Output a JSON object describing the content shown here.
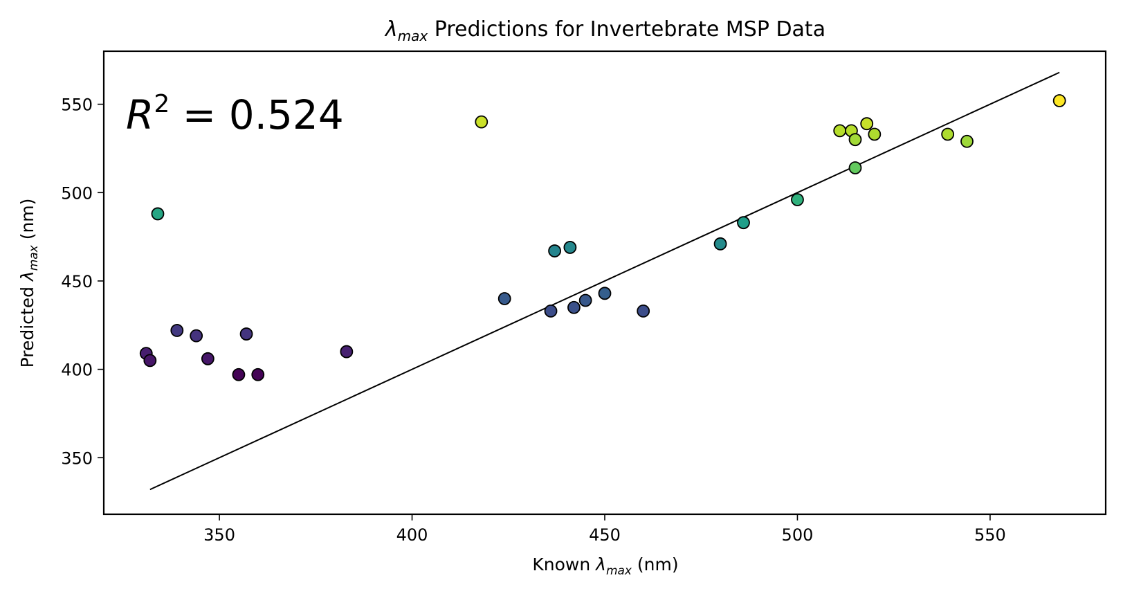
{
  "chart_data": {
    "type": "scatter",
    "title": {
      "symbol": "λ",
      "subscript": "max",
      "text": " Predictions for Invertebrate MSP Data"
    },
    "xlabel": {
      "prefix": "Known ",
      "symbol": "λ",
      "subscript": "max",
      "suffix": " (nm)"
    },
    "ylabel": {
      "prefix": "Predicted ",
      "symbol": "λ",
      "subscript": "max",
      "suffix": " (nm)"
    },
    "annotation": {
      "variable": "R",
      "exponent": "2",
      "text": " = 0.524"
    },
    "xlim": [
      320,
      580
    ],
    "ylim": [
      318,
      580
    ],
    "xticks": [
      350,
      400,
      450,
      500,
      550
    ],
    "yticks": [
      350,
      400,
      450,
      500,
      550
    ],
    "grid": false,
    "reference_line": {
      "x": [
        332,
        568
      ],
      "y": [
        332,
        568
      ]
    },
    "colormap": [
      "#440154",
      "#482878",
      "#3e4989",
      "#31688e",
      "#26828e",
      "#1f9e89",
      "#35b779",
      "#6ece58",
      "#b5de2b",
      "#fde725"
    ],
    "colormap_range": [
      396,
      552
    ],
    "points": [
      {
        "x": 331,
        "y": 409
      },
      {
        "x": 332,
        "y": 405
      },
      {
        "x": 334,
        "y": 488
      },
      {
        "x": 339,
        "y": 422
      },
      {
        "x": 344,
        "y": 419
      },
      {
        "x": 347,
        "y": 406
      },
      {
        "x": 355,
        "y": 397
      },
      {
        "x": 357,
        "y": 420
      },
      {
        "x": 360,
        "y": 397
      },
      {
        "x": 383,
        "y": 410
      },
      {
        "x": 418,
        "y": 540
      },
      {
        "x": 424,
        "y": 440
      },
      {
        "x": 436,
        "y": 433
      },
      {
        "x": 437,
        "y": 467
      },
      {
        "x": 441,
        "y": 469
      },
      {
        "x": 442,
        "y": 435
      },
      {
        "x": 445,
        "y": 439
      },
      {
        "x": 450,
        "y": 443
      },
      {
        "x": 460,
        "y": 433
      },
      {
        "x": 480,
        "y": 471
      },
      {
        "x": 486,
        "y": 483
      },
      {
        "x": 500,
        "y": 496
      },
      {
        "x": 511,
        "y": 535
      },
      {
        "x": 514,
        "y": 535
      },
      {
        "x": 515,
        "y": 530
      },
      {
        "x": 515,
        "y": 514
      },
      {
        "x": 518,
        "y": 539
      },
      {
        "x": 520,
        "y": 533
      },
      {
        "x": 539,
        "y": 533
      },
      {
        "x": 544,
        "y": 529
      },
      {
        "x": 568,
        "y": 552
      }
    ]
  }
}
